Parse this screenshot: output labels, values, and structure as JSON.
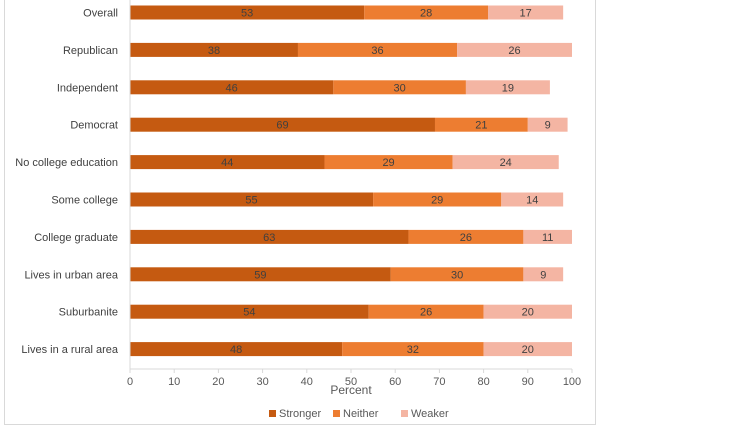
{
  "chart_data": {
    "type": "bar",
    "orientation": "horizontal",
    "stacked": true,
    "categories": [
      "Overall",
      "Republican",
      "Independent",
      "Democrat",
      "No college education",
      "Some college",
      "College graduate",
      "Lives in urban area",
      "Suburbanite",
      "Lives in a rural area"
    ],
    "series": [
      {
        "name": "Stronger",
        "color": "#c55a11",
        "values": [
          53,
          38,
          46,
          69,
          44,
          55,
          63,
          59,
          54,
          48
        ]
      },
      {
        "name": "Neither",
        "color": "#ed7d31",
        "values": [
          28,
          36,
          30,
          21,
          29,
          29,
          26,
          30,
          26,
          32
        ]
      },
      {
        "name": "Weaker",
        "color": "#f4b5a3",
        "values": [
          17,
          26,
          19,
          9,
          24,
          14,
          11,
          9,
          20,
          20
        ]
      }
    ],
    "xlabel": "Percent",
    "xlim": [
      0,
      100
    ],
    "xticks": [
      0,
      10,
      20,
      30,
      40,
      50,
      60,
      70,
      80,
      90,
      100
    ],
    "grid": false,
    "legend_position": "bottom"
  }
}
